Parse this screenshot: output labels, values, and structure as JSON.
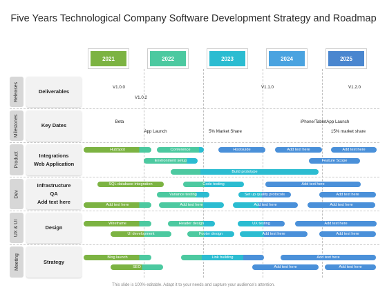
{
  "title": "Five Years Technological Company Software Development Strategy and Roadmap",
  "years": [
    {
      "label": "2021",
      "color": "#7cb342"
    },
    {
      "label": "2022",
      "color": "#4cc9a0"
    },
    {
      "label": "2023",
      "color": "#2bbcd1"
    },
    {
      "label": "2024",
      "color": "#4aa3e0"
    },
    {
      "label": "2025",
      "color": "#4a86cf"
    }
  ],
  "rows": [
    {
      "side": "Releases",
      "category": [
        "Deliverables"
      ]
    },
    {
      "side": "Milestones",
      "category": [
        "Key Dates"
      ]
    },
    {
      "side": "Product",
      "category": [
        "Integrations",
        "Web Application"
      ]
    },
    {
      "side": "Dev",
      "category": [
        "Infrastructure",
        "QA",
        "Add text here"
      ]
    },
    {
      "side": "UX & UI",
      "category": [
        "Design"
      ]
    },
    {
      "side": "Meeting",
      "category": [
        "Strategy"
      ]
    }
  ],
  "releases": [
    "V1.0.0",
    "V1.0.2",
    "V1.1.0",
    "V1.2.0"
  ],
  "milestones": [
    "Beta",
    "App Launch",
    "5% Market Share",
    "iPhone/TabletApp Launch",
    "15% market share"
  ],
  "bars": {
    "product": [
      "HubSpot",
      "Conference",
      "Hootsuide",
      "Add text here",
      "Add text here",
      "Environment setup",
      "Feature Scope",
      "Build prototype"
    ],
    "dev": [
      "SQL database integration",
      "Code testing",
      "Add text here",
      "Variance testing",
      "Set up quality protocols",
      "Add text here",
      "Add text here",
      "Add text here",
      "Add text here",
      "Add text here"
    ],
    "ux": [
      "Wireframe",
      "Header design",
      "UX testing",
      "Add text here",
      "UI development",
      "Footer design",
      "Add text here",
      "Add text here"
    ],
    "meeting": [
      "Blog launch",
      "Link building",
      "Add text here",
      "SEO",
      "Add text here",
      "Add text here"
    ]
  },
  "colors": {
    "green": "#7cb342",
    "mint": "#4cc9a0",
    "blue": "#4a90d9"
  },
  "footer": "This slide is 100% editable. Adapt it to your needs and capture your audience's attention."
}
